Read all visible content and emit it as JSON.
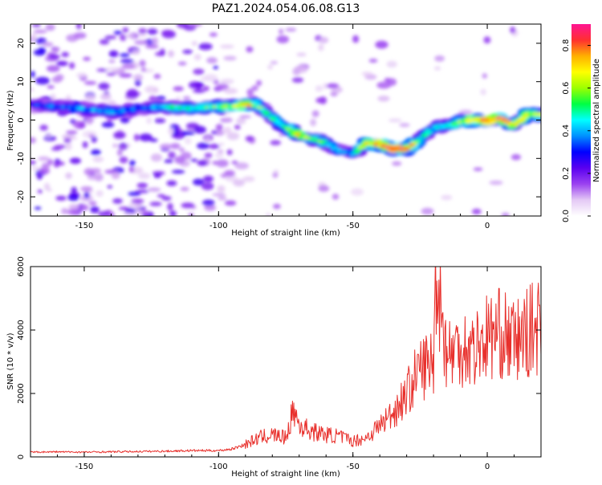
{
  "page": {
    "title": "PAZ1.2024.054.06.08.G13"
  },
  "chart_data": [
    {
      "type": "heatmap",
      "title": "",
      "xlabel": "Height of straight line (km)",
      "ylabel": "Frequency (Hz)",
      "xlim": [
        -170,
        20
      ],
      "ylim": [
        -25,
        25
      ],
      "xticks": [
        -150,
        -100,
        -50,
        0
      ],
      "yticks": [
        -20,
        -10,
        0,
        10,
        20
      ],
      "colorbar": {
        "label": "Normalized spectral amplitude",
        "range": [
          0,
          0.9
        ],
        "ticks": [
          0.0,
          0.2,
          0.4,
          0.6,
          0.8
        ],
        "colormap": [
          "#ffffff",
          "#e4c9f5",
          "#9b42f0",
          "#5a00f0",
          "#0000ff",
          "#0090ff",
          "#00ffff",
          "#00ff44",
          "#9cff00",
          "#ffff00",
          "#ffb000",
          "#ff3030",
          "#ff1493"
        ]
      },
      "ridge": {
        "x": [
          -170,
          -160,
          -150,
          -140,
          -130,
          -120,
          -110,
          -100,
          -95,
          -90,
          -85,
          -80,
          -75,
          -70,
          -65,
          -60,
          -55,
          -50,
          -45,
          -40,
          -35,
          -30,
          -25,
          -20,
          -15,
          -10,
          -5,
          0,
          5,
          10,
          15,
          20
        ],
        "frequency": [
          4,
          3.5,
          3,
          2,
          3,
          3.5,
          3,
          3.5,
          3.5,
          4,
          3.5,
          0.5,
          -2,
          -4,
          -5,
          -6,
          -8,
          -9,
          -6,
          -6.5,
          -7.5,
          -7.5,
          -5,
          -2,
          -1.5,
          -0.5,
          0,
          0,
          0.5,
          -1.5,
          1.5,
          1.5
        ],
        "peak_amplitude": [
          0.3,
          0.35,
          0.4,
          0.4,
          0.35,
          0.45,
          0.5,
          0.55,
          0.6,
          0.8,
          0.55,
          0.45,
          0.5,
          0.7,
          0.55,
          0.5,
          0.4,
          0.35,
          0.7,
          0.8,
          0.9,
          0.85,
          0.5,
          0.45,
          0.5,
          0.6,
          0.7,
          0.85,
          0.85,
          0.6,
          0.7,
          0.6
        ]
      }
    },
    {
      "type": "line",
      "title": "",
      "xlabel": "Height of straight line (km)",
      "ylabel": "SNR (10 * v/v)",
      "xlim": [
        -170,
        20
      ],
      "ylim": [
        0,
        6000
      ],
      "xticks": [
        -150,
        -100,
        -50,
        0
      ],
      "yticks": [
        0,
        2000,
        4000,
        6000
      ],
      "series": [
        {
          "color": "#e8302c",
          "x": [
            -170,
            -160,
            -150,
            -140,
            -130,
            -120,
            -110,
            -100,
            -95,
            -90,
            -85,
            -80,
            -75,
            -72,
            -70,
            -65,
            -60,
            -55,
            -50,
            -45,
            -40,
            -35,
            -30,
            -25,
            -20,
            -19,
            -15,
            -10,
            -5,
            0,
            5,
            10,
            15,
            20
          ],
          "values": [
            150,
            160,
            150,
            160,
            170,
            180,
            200,
            200,
            250,
            400,
            600,
            700,
            600,
            1500,
            1000,
            800,
            700,
            650,
            500,
            600,
            1000,
            1400,
            2000,
            2800,
            3000,
            6000,
            3200,
            3500,
            3400,
            3800,
            3900,
            3600,
            3900,
            4200
          ]
        }
      ]
    }
  ]
}
